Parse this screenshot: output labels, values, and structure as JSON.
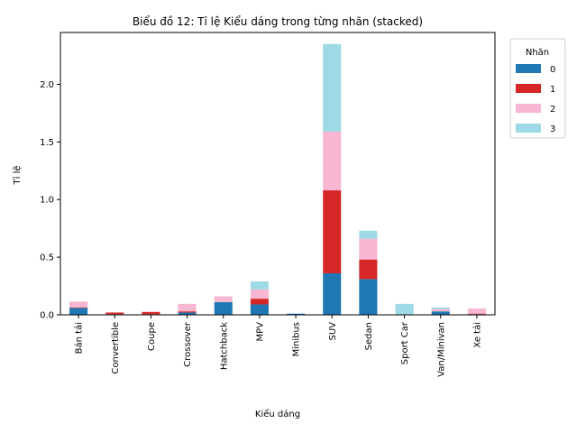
{
  "chart_data": {
    "type": "bar",
    "stacked": true,
    "title": "Biểu đồ 12: Tỉ lệ Kiểu dáng trong từng nhãn (stacked)",
    "xlabel": "Kiểu dáng",
    "ylabel": "Tỉ lệ",
    "ylim": [
      0,
      2.45
    ],
    "yticks": [
      0.0,
      0.5,
      1.0,
      1.5,
      2.0
    ],
    "ytick_labels": [
      "0.0",
      "0.5",
      "1.0",
      "1.5",
      "2.0"
    ],
    "grid": false,
    "legend": {
      "title": "Nhãn",
      "placement": "upper-right-outside"
    },
    "categories": [
      "Bán tải",
      "Convertible",
      "Coupe",
      "Crossover",
      "Hatchback",
      "MPV",
      "Minibus",
      "SUV",
      "Sedan",
      "Sport Car",
      "Van/Minivan",
      "Xe tải"
    ],
    "series": [
      {
        "name": "0",
        "color": "#1f77b4",
        "values": [
          0.06,
          0.005,
          0.005,
          0.02,
          0.11,
          0.09,
          0.01,
          0.36,
          0.31,
          0.0,
          0.03,
          0.005
        ]
      },
      {
        "name": "1",
        "color": "#d62728",
        "values": [
          0.005,
          0.015,
          0.02,
          0.01,
          0.0,
          0.05,
          0.0,
          0.72,
          0.17,
          0.0,
          0.0,
          0.005
        ]
      },
      {
        "name": "2",
        "color": "#f7b6d2",
        "values": [
          0.05,
          0.0,
          0.0,
          0.065,
          0.05,
          0.08,
          0.0,
          0.51,
          0.18,
          0.0,
          0.02,
          0.045
        ]
      },
      {
        "name": "3",
        "color": "#9edae5",
        "values": [
          0.0,
          0.0,
          0.0,
          0.0,
          0.0,
          0.07,
          0.0,
          0.76,
          0.07,
          0.095,
          0.015,
          0.0
        ]
      }
    ]
  }
}
